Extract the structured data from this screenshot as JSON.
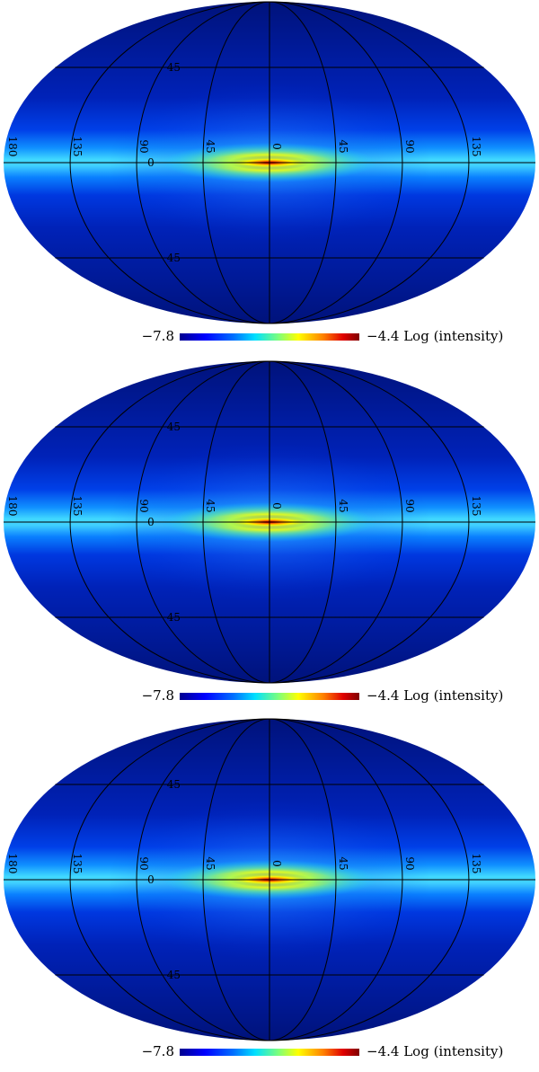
{
  "maps": [
    {
      "colorbar": {
        "min_label": "−7.8",
        "max_label": "−4.4",
        "unit_label": "Log (intensity)"
      },
      "longitude_labels": [
        "180",
        "135",
        "90",
        "45",
        "0",
        "45",
        "90",
        "135"
      ],
      "latitude_labels": [
        "45",
        "0",
        "45"
      ]
    },
    {
      "colorbar": {
        "min_label": "−7.8",
        "max_label": "−4.4",
        "unit_label": "Log (intensity)"
      },
      "longitude_labels": [
        "180",
        "135",
        "90",
        "45",
        "0",
        "45",
        "90",
        "135"
      ],
      "latitude_labels": [
        "45",
        "0",
        "45"
      ]
    },
    {
      "colorbar": {
        "min_label": "−7.8",
        "max_label": "−4.4",
        "unit_label": "Log (intensity)"
      },
      "longitude_labels": [
        "180",
        "135",
        "90",
        "45",
        "0",
        "45",
        "90",
        "135"
      ],
      "latitude_labels": [
        "45",
        "0",
        "45"
      ]
    }
  ],
  "projection": "Mollweide",
  "colormap": [
    "#00008f",
    "#0000ff",
    "#0070ff",
    "#00e0ff",
    "#7dff7a",
    "#ffff00",
    "#ff8000",
    "#e00000",
    "#800000"
  ]
}
